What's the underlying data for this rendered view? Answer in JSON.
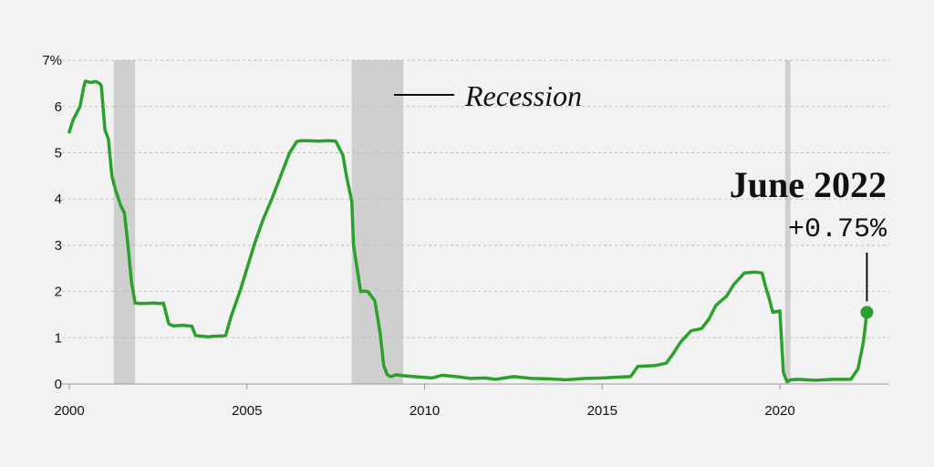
{
  "chart_data": {
    "type": "line",
    "title": "",
    "xlabel": "",
    "ylabel": "",
    "x_ticks": [
      "2000",
      "2005",
      "2010",
      "2015",
      "2020"
    ],
    "y_ticks": [
      "0",
      "1",
      "2",
      "3",
      "4",
      "5",
      "6",
      "7%"
    ],
    "ylim": [
      0,
      7
    ],
    "xlim": [
      2000,
      2022.5
    ],
    "grid": true,
    "line_color": "#2ca02c",
    "recession_color": "#cfcfcf",
    "recession_label": "Recession",
    "recessions": [
      [
        2001.25,
        2001.85
      ],
      [
        2007.95,
        2009.4
      ],
      [
        2020.15,
        2020.3
      ]
    ],
    "annotation": {
      "title": "June 2022",
      "value": "+0.75%",
      "x": 2022.45,
      "y": 1.55
    },
    "series": [
      {
        "x": [
          2000.0,
          2000.1,
          2000.3,
          2000.4,
          2000.45,
          2000.6,
          2000.75,
          2000.85,
          2000.9,
          2001.0,
          2001.1,
          2001.2,
          2001.3,
          2001.45,
          2001.55,
          2001.65,
          2001.75,
          2001.85,
          2002.0,
          2002.4,
          2002.55,
          2002.65,
          2002.8,
          2002.95,
          2003.0,
          2003.2,
          2003.45,
          2003.55,
          2003.65,
          2003.9,
          2004.0,
          2004.3,
          2004.4,
          2004.55,
          2004.8,
          2005.0,
          2005.2,
          2005.45,
          2005.7,
          2005.95,
          2006.2,
          2006.4,
          2006.5,
          2006.7,
          2007.0,
          2007.3,
          2007.5,
          2007.7,
          2007.8,
          2007.95,
          2008.0,
          2008.1,
          2008.2,
          2008.3,
          2008.4,
          2008.6,
          2008.75,
          2008.85,
          2008.95,
          2009.05,
          2009.2,
          2009.4,
          2009.7,
          2010.2,
          2010.5,
          2011.0,
          2011.3,
          2011.7,
          2012.0,
          2012.5,
          2013.0,
          2013.5,
          2014.0,
          2014.5,
          2015.0,
          2015.5,
          2015.8,
          2016.0,
          2016.5,
          2016.8,
          2017.0,
          2017.2,
          2017.5,
          2017.8,
          2018.0,
          2018.2,
          2018.5,
          2018.7,
          2019.0,
          2019.3,
          2019.5,
          2019.6,
          2019.7,
          2019.8,
          2020.0,
          2020.1,
          2020.2,
          2020.3,
          2020.5,
          2021.0,
          2021.5,
          2022.0,
          2022.2,
          2022.35,
          2022.45
        ],
        "y": [
          5.45,
          5.7,
          6.0,
          6.4,
          6.55,
          6.52,
          6.54,
          6.5,
          6.45,
          5.5,
          5.3,
          4.5,
          4.2,
          3.85,
          3.7,
          3.0,
          2.2,
          1.75,
          1.74,
          1.75,
          1.74,
          1.75,
          1.3,
          1.25,
          1.26,
          1.27,
          1.25,
          1.05,
          1.04,
          1.02,
          1.03,
          1.04,
          1.05,
          1.45,
          2.0,
          2.5,
          3.0,
          3.55,
          4.0,
          4.5,
          5.0,
          5.24,
          5.26,
          5.26,
          5.25,
          5.26,
          5.25,
          4.95,
          4.5,
          3.95,
          3.0,
          2.5,
          2.0,
          2.01,
          2.0,
          1.8,
          1.1,
          0.4,
          0.2,
          0.16,
          0.2,
          0.18,
          0.16,
          0.13,
          0.19,
          0.15,
          0.12,
          0.13,
          0.1,
          0.16,
          0.12,
          0.11,
          0.09,
          0.12,
          0.13,
          0.15,
          0.16,
          0.38,
          0.4,
          0.45,
          0.66,
          0.9,
          1.15,
          1.2,
          1.4,
          1.7,
          1.9,
          2.15,
          2.4,
          2.42,
          2.4,
          2.1,
          1.85,
          1.55,
          1.58,
          0.25,
          0.05,
          0.09,
          0.1,
          0.08,
          0.1,
          0.1,
          0.33,
          0.9,
          1.55
        ]
      }
    ]
  }
}
